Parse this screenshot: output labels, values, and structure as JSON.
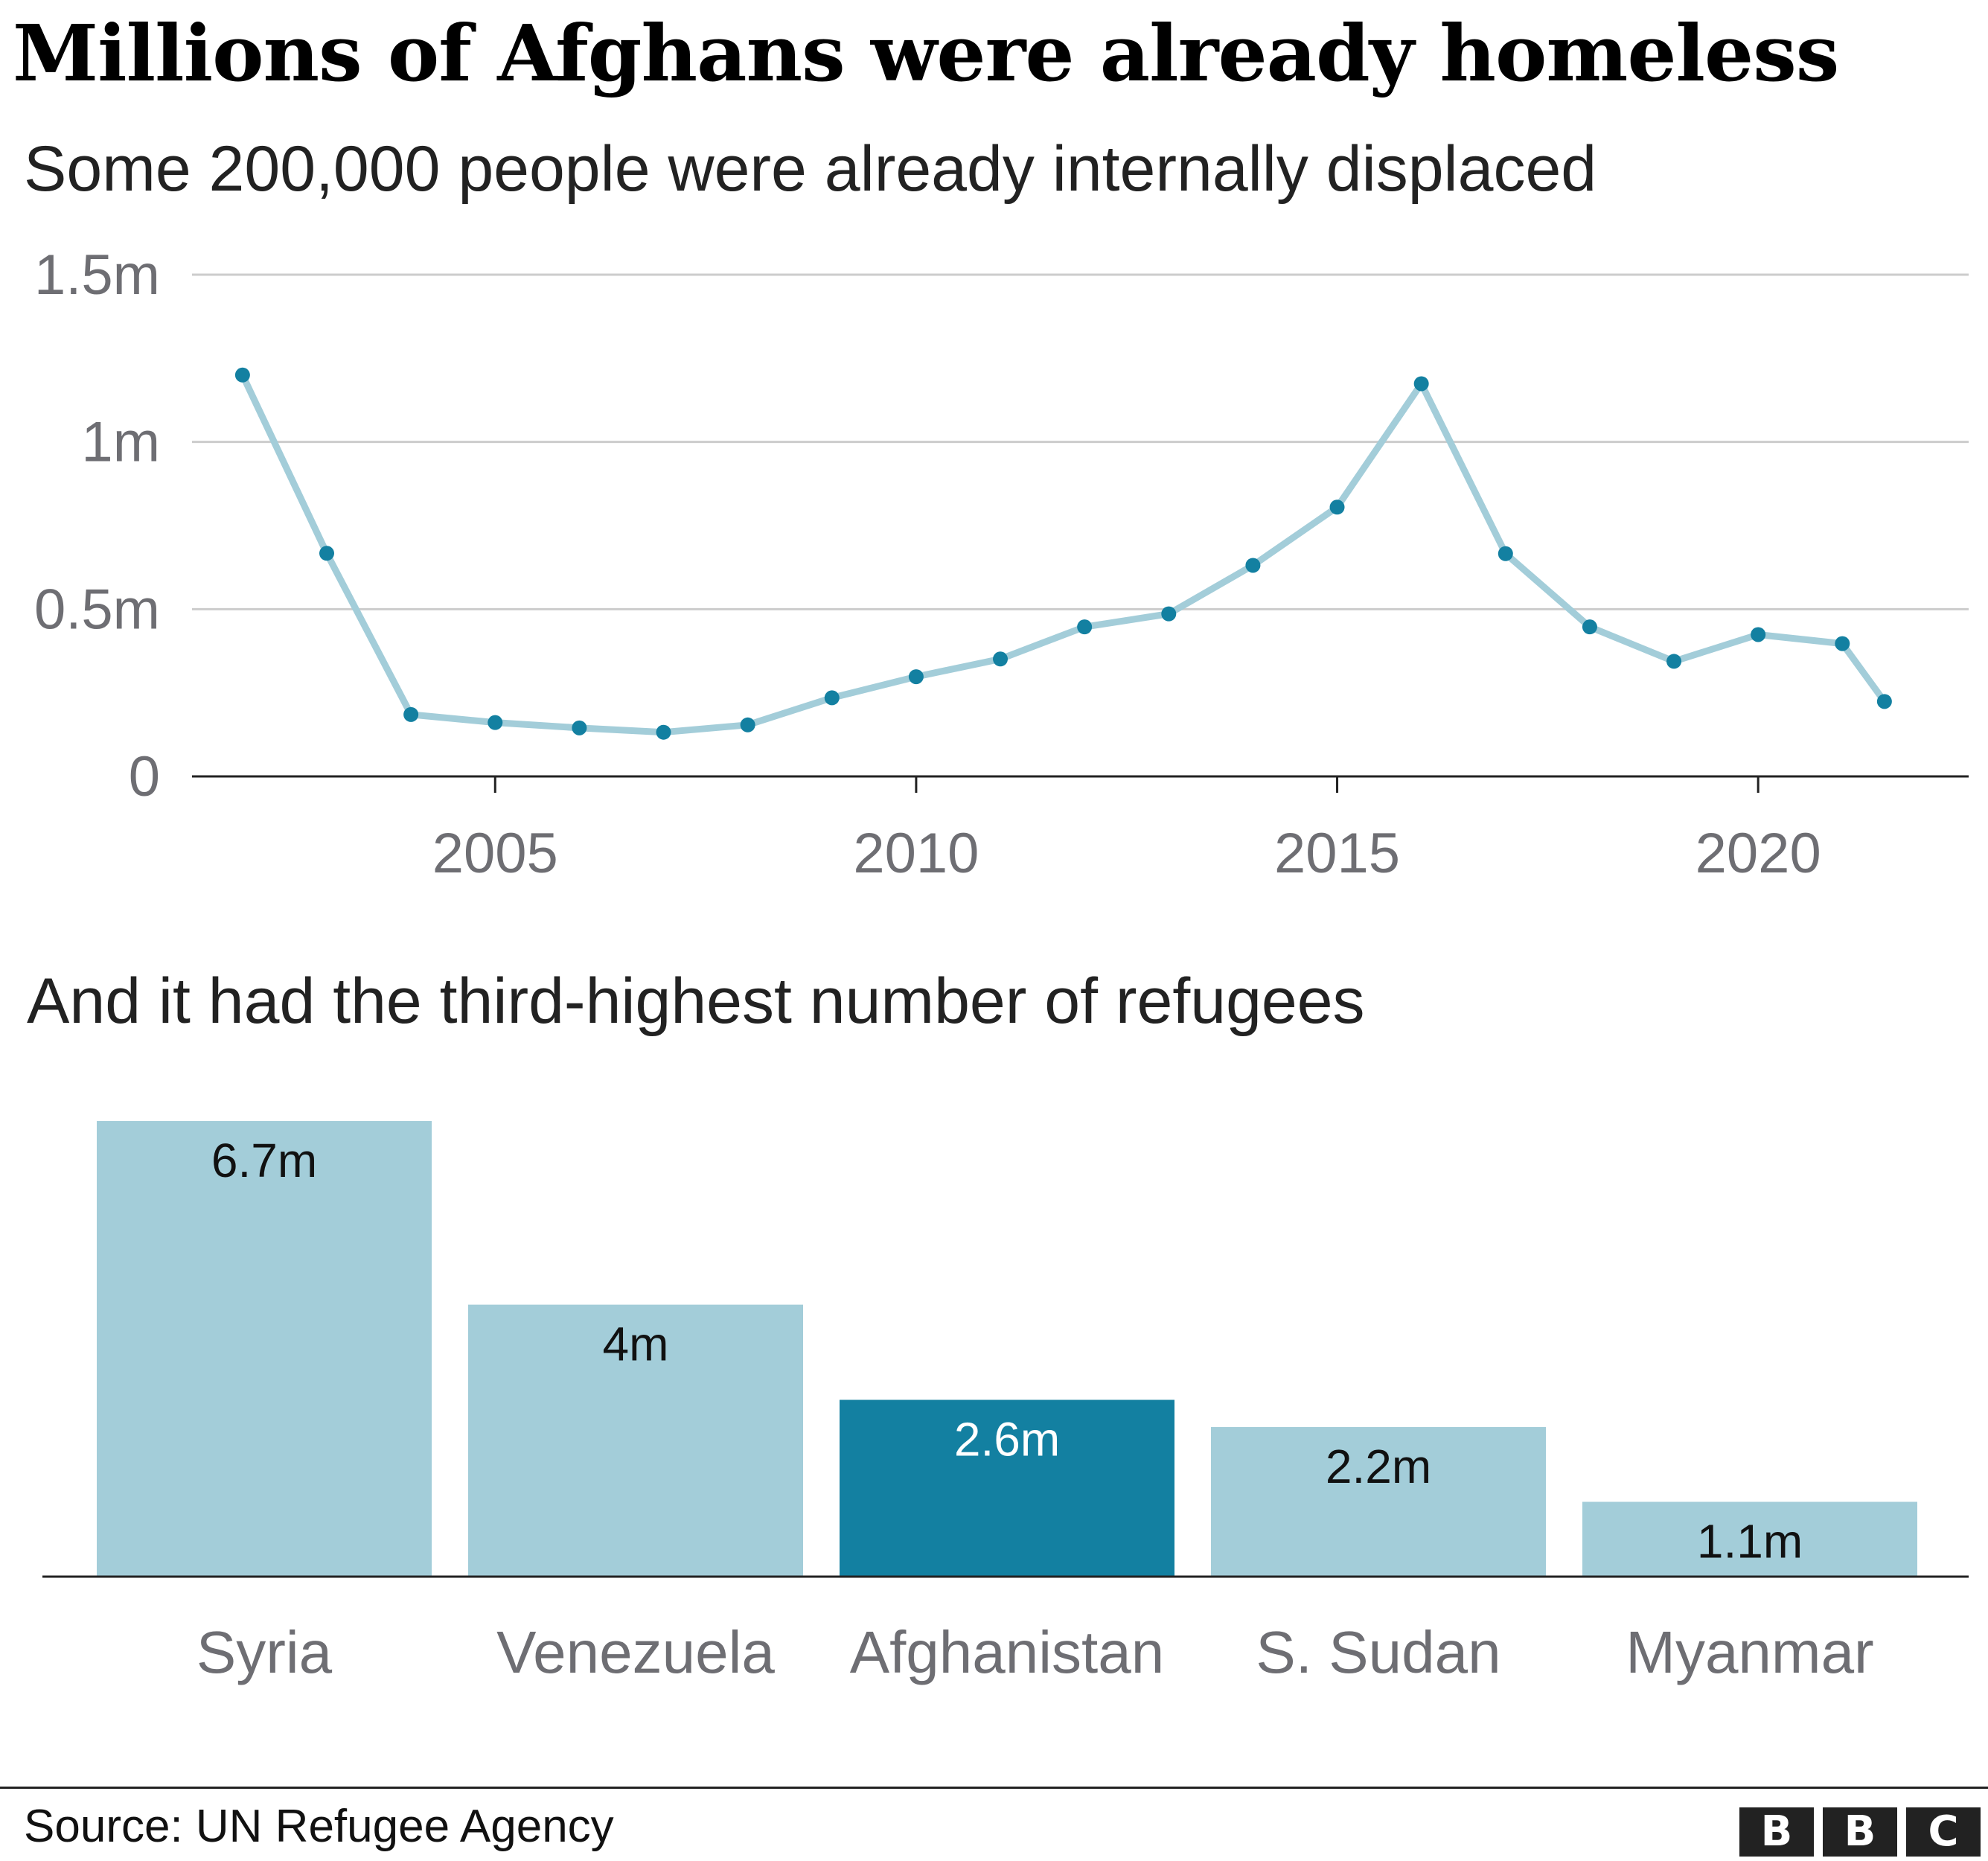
{
  "title": "Millions of Afghans were already homeless",
  "subtitle": "Some 200,000 people were already internally displaced",
  "subtitle2": "And it had the third-highest number of refugees",
  "source": "Source: UN Refugee Agency",
  "logo": [
    "B",
    "B",
    "C"
  ],
  "colors": {
    "line": "#a3cdd9",
    "marker": "#1380a1",
    "bar": "#a3cdd9",
    "bar_highlight": "#1380a1",
    "grid": "#cccccc",
    "axis": "#222222",
    "tick_text": "#6e6e73"
  },
  "chart_data": [
    {
      "type": "line",
      "title": "Some 200,000 people were already internally displaced",
      "x": [
        2002,
        2003,
        2004,
        2005,
        2006,
        2007,
        2008,
        2009,
        2010,
        2011,
        2012,
        2013,
        2014,
        2015,
        2016,
        2017,
        2018,
        2019,
        2020,
        2021,
        2021.5
      ],
      "series": [
        {
          "values": [
            1.2,
            0.667,
            0.185,
            0.161,
            0.145,
            0.132,
            0.154,
            0.235,
            0.298,
            0.351,
            0.447,
            0.486,
            0.631,
            0.805,
            1.174,
            0.666,
            0.447,
            0.344,
            0.424,
            0.397,
            0.224
          ]
        }
      ],
      "ylim": [
        0,
        1.5
      ],
      "xlim": [
        2001.4,
        2022.5
      ],
      "yticks": [
        {
          "value": 0,
          "label": "0"
        },
        {
          "value": 0.5,
          "label": "0.5m"
        },
        {
          "value": 1,
          "label": "1m"
        },
        {
          "value": 1.5,
          "label": "1.5m"
        }
      ],
      "xticks": [
        {
          "value": 2005,
          "label": "2005"
        },
        {
          "value": 2010,
          "label": "2010"
        },
        {
          "value": 2015,
          "label": "2015"
        },
        {
          "value": 2020,
          "label": "2020"
        }
      ],
      "grid": true
    },
    {
      "type": "bar",
      "title": "And it had the third-highest number of refugees",
      "categories": [
        "Syria",
        "Venezuela",
        "Afghanistan",
        "S. Sudan",
        "Myanmar"
      ],
      "values": [
        6.7,
        4,
        2.6,
        2.2,
        1.1
      ],
      "labels": [
        "6.7m",
        "4m",
        "2.6m",
        "2.2m",
        "1.1m"
      ],
      "highlight": "Afghanistan",
      "ylim": [
        0,
        6.7
      ]
    }
  ]
}
